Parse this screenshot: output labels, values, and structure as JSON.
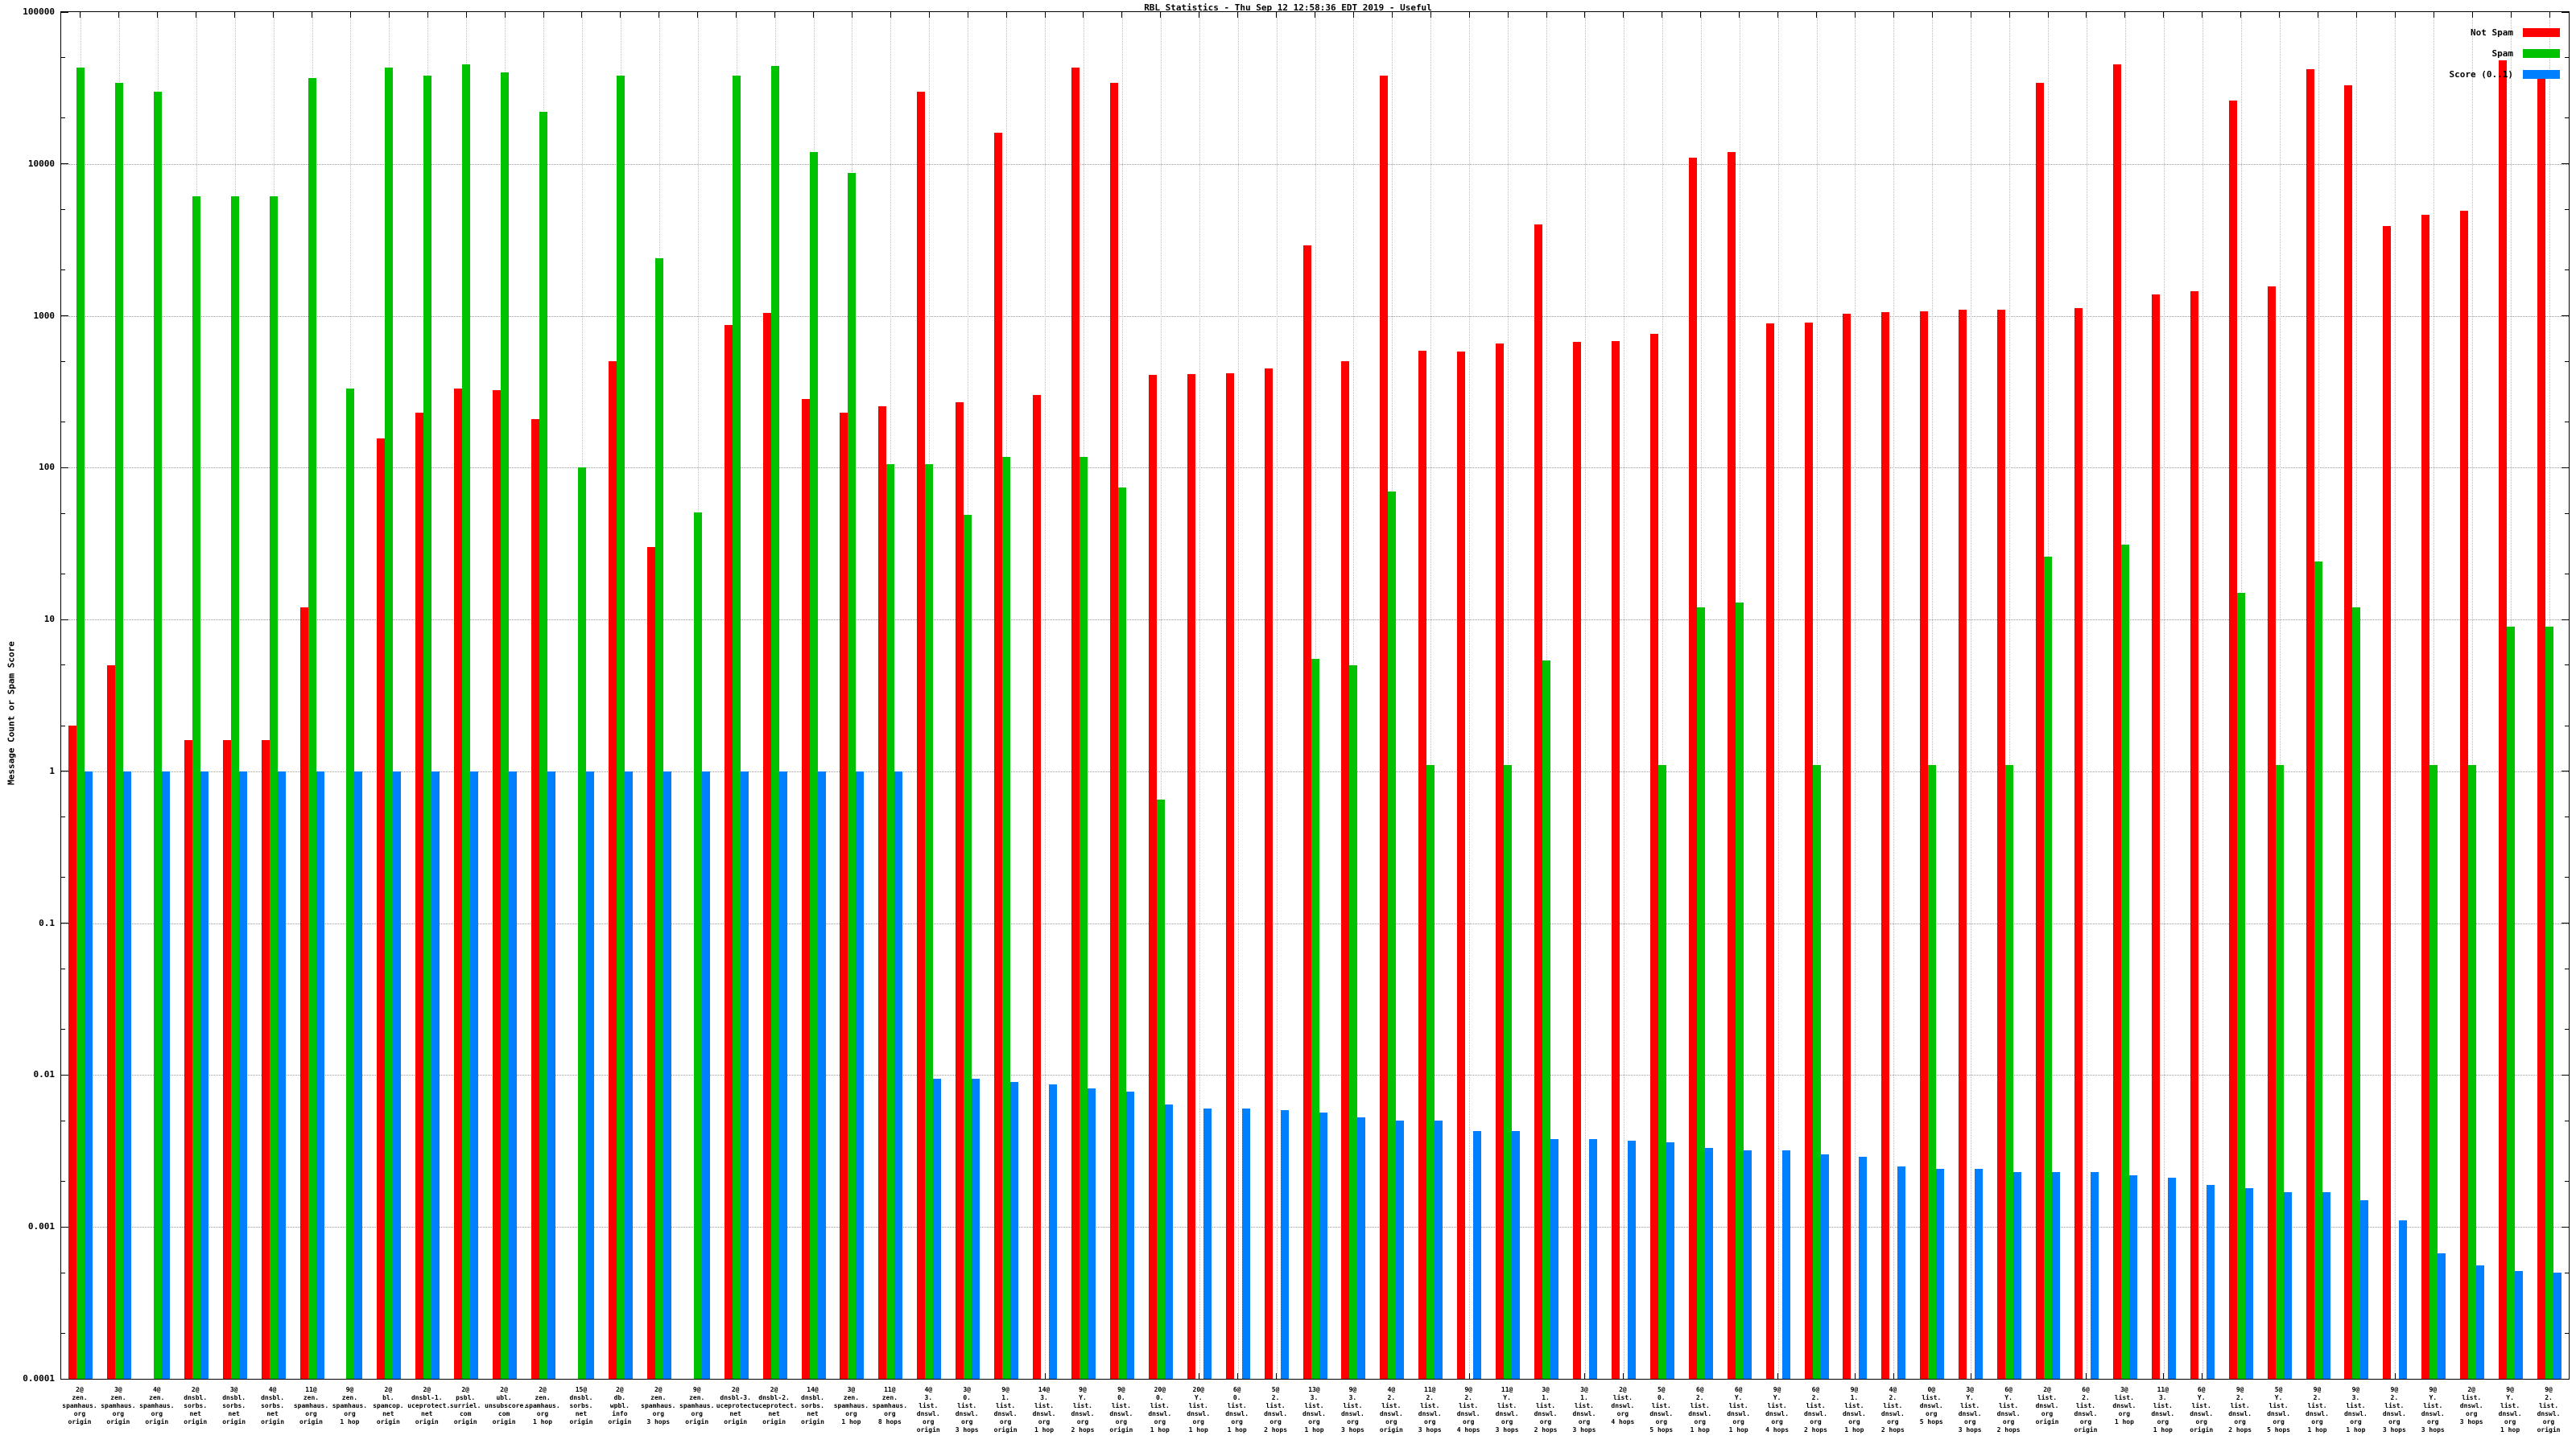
{
  "title": "RBL Statistics - Thu Sep 12 12:58:36 EDT 2019 - Useful",
  "axes": {
    "y_label": "Message Count or Spam Score",
    "y_ticks": [
      "100000",
      "10000",
      "1000",
      "100",
      "10",
      "1",
      "0.1",
      "0.01",
      "0.001",
      "0.0001"
    ],
    "y_max": 100000,
    "y_min": 0.0001,
    "log_decades": 9,
    "grid": "dotted"
  },
  "legend": {
    "position": "top-right",
    "items": [
      {
        "label": "Not Spam",
        "color": "#ff0000"
      },
      {
        "label": "Spam",
        "color": "#00c200"
      },
      {
        "label": "Score (0..1)",
        "color": "#0080ff"
      }
    ]
  },
  "chart_data": {
    "type": "bar",
    "scale": "log",
    "ylim": [
      0.0001,
      100000
    ],
    "categories": [
      [
        "2@",
        "zen.",
        "spamhaus.",
        "org",
        "origin"
      ],
      [
        "3@",
        "zen.",
        "spamhaus.",
        "org",
        "origin"
      ],
      [
        "4@",
        "zen.",
        "spamhaus.",
        "org",
        "origin"
      ],
      [
        "2@",
        "dnsbl.",
        "sorbs.",
        "net",
        "origin"
      ],
      [
        "3@",
        "dnsbl.",
        "sorbs.",
        "net",
        "origin"
      ],
      [
        "4@",
        "dnsbl.",
        "sorbs.",
        "net",
        "origin"
      ],
      [
        "11@",
        "zen.",
        "spamhaus.",
        "org",
        "origin"
      ],
      [
        "9@",
        "zen.",
        "spamhaus.",
        "org",
        "1 hop"
      ],
      [
        "2@",
        "bl.",
        "spamcop.",
        "net",
        "origin"
      ],
      [
        "2@",
        "dnsbl-1.",
        "uceprotect.",
        "net",
        "origin"
      ],
      [
        "2@",
        "psbl.",
        "surriel.",
        "com",
        "origin"
      ],
      [
        "2@",
        "ubl.",
        "unsubscore.",
        "com",
        "origin"
      ],
      [
        "2@",
        "zen.",
        "spamhaus.",
        "org",
        "1 hop"
      ],
      [
        "15@",
        "dnsbl.",
        "sorbs.",
        "net",
        "origin"
      ],
      [
        "2@",
        "db.",
        "wpbl.",
        "info",
        "origin"
      ],
      [
        "2@",
        "zen.",
        "spamhaus.",
        "org",
        "3 hops"
      ],
      [
        "9@",
        "zen.",
        "spamhaus.",
        "org",
        "origin"
      ],
      [
        "2@",
        "dnsbl-3.",
        "uceprotect.",
        "net",
        "origin"
      ],
      [
        "2@",
        "dnsbl-2.",
        "uceprotect.",
        "net",
        "origin"
      ],
      [
        "14@",
        "dnsbl.",
        "sorbs.",
        "net",
        "origin"
      ],
      [
        "3@",
        "zen.",
        "spamhaus.",
        "org",
        "1 hop"
      ],
      [
        "11@",
        "zen.",
        "spamhaus.",
        "org",
        "8 hops"
      ],
      [
        "4@",
        "3.",
        "list.",
        "dnswl.",
        "org",
        "origin"
      ],
      [
        "3@",
        "0.",
        "list.",
        "dnswl.",
        "org",
        "3 hops"
      ],
      [
        "9@",
        "1.",
        "list.",
        "dnswl.",
        "org",
        "origin"
      ],
      [
        "14@",
        "3.",
        "list.",
        "dnswl.",
        "org",
        "1 hop"
      ],
      [
        "9@",
        "Y.",
        "list.",
        "dnswl.",
        "org",
        "2 hops"
      ],
      [
        "9@",
        "0.",
        "list.",
        "dnswl.",
        "org",
        "origin"
      ],
      [
        "20@",
        "0.",
        "list.",
        "dnswl.",
        "org",
        "1 hop"
      ],
      [
        "20@",
        "Y.",
        "list.",
        "dnswl.",
        "org",
        "1 hop"
      ],
      [
        "6@",
        "0.",
        "list.",
        "dnswl.",
        "org",
        "1 hop"
      ],
      [
        "5@",
        "2.",
        "list.",
        "dnswl.",
        "org",
        "2 hops"
      ],
      [
        "13@",
        "3.",
        "list.",
        "dnswl.",
        "org",
        "1 hop"
      ],
      [
        "9@",
        "3.",
        "list.",
        "dnswl.",
        "org",
        "3 hops"
      ],
      [
        "4@",
        "2.",
        "list.",
        "dnswl.",
        "org",
        "origin"
      ],
      [
        "11@",
        "2.",
        "list.",
        "dnswl.",
        "org",
        "3 hops"
      ],
      [
        "9@",
        "2.",
        "list.",
        "dnswl.",
        "org",
        "4 hops"
      ],
      [
        "11@",
        "Y.",
        "list.",
        "dnswl.",
        "org",
        "3 hops"
      ],
      [
        "3@",
        "1.",
        "list.",
        "dnswl.",
        "org",
        "2 hops"
      ],
      [
        "3@",
        "1.",
        "list.",
        "dnswl.",
        "org",
        "3 hops"
      ],
      [
        "2@",
        "list.",
        "dnswl.",
        "org",
        "4 hops"
      ],
      [
        "5@",
        "0.",
        "list.",
        "dnswl.",
        "org",
        "5 hops"
      ],
      [
        "6@",
        "2.",
        "list.",
        "dnswl.",
        "org",
        "1 hop"
      ],
      [
        "6@",
        "Y.",
        "list.",
        "dnswl.",
        "org",
        "1 hop"
      ],
      [
        "9@",
        "Y.",
        "list.",
        "dnswl.",
        "org",
        "4 hops"
      ],
      [
        "6@",
        "2.",
        "list.",
        "dnswl.",
        "org",
        "2 hops"
      ],
      [
        "9@",
        "1.",
        "list.",
        "dnswl.",
        "org",
        "1 hop"
      ],
      [
        "4@",
        "2.",
        "list.",
        "dnswl.",
        "org",
        "2 hops"
      ],
      [
        "0@",
        "list.",
        "dnswl.",
        "org",
        "5 hops"
      ],
      [
        "3@",
        "Y.",
        "list.",
        "dnswl.",
        "org",
        "3 hops"
      ],
      [
        "6@",
        "Y.",
        "list.",
        "dnswl.",
        "org",
        "2 hops"
      ],
      [
        "2@",
        "list.",
        "dnswl.",
        "org",
        "origin"
      ],
      [
        "6@",
        "2.",
        "list.",
        "dnswl.",
        "org",
        "origin"
      ],
      [
        "3@",
        "list.",
        "dnswl.",
        "org",
        "1 hop"
      ],
      [
        "11@",
        "3.",
        "list.",
        "dnswl.",
        "org",
        "1 hop"
      ],
      [
        "6@",
        "Y.",
        "list.",
        "dnswl.",
        "org",
        "origin"
      ],
      [
        "9@",
        "2.",
        "list.",
        "dnswl.",
        "org",
        "2 hops"
      ],
      [
        "5@",
        "Y.",
        "list.",
        "dnswl.",
        "org",
        "5 hops"
      ],
      [
        "9@",
        "2.",
        "list.",
        "dnswl.",
        "org",
        "1 hop"
      ],
      [
        "9@",
        "3.",
        "list.",
        "dnswl.",
        "org",
        "1 hop"
      ],
      [
        "9@",
        "2.",
        "list.",
        "dnswl.",
        "org",
        "3 hops"
      ],
      [
        "9@",
        "Y.",
        "list.",
        "dnswl.",
        "org",
        "3 hops"
      ],
      [
        "2@",
        "list.",
        "dnswl.",
        "org",
        "3 hops"
      ],
      [
        "9@",
        "Y.",
        "list.",
        "dnswl.",
        "org",
        "1 hop"
      ],
      [
        "9@",
        "2.",
        "list.",
        "dnswl.",
        "org",
        "origin"
      ]
    ],
    "series": [
      {
        "name": "Not Spam",
        "color": "#ff0000",
        "values": [
          2,
          5,
          0,
          1.6,
          1.6,
          1.6,
          12,
          0,
          155,
          230,
          330,
          325,
          210,
          0,
          500,
          30,
          0,
          870,
          1050,
          283,
          230,
          255,
          30000,
          270,
          16000,
          300,
          43000,
          34000,
          410,
          415,
          420,
          450,
          2900,
          500,
          38000,
          590,
          585,
          660,
          4000,
          675,
          685,
          760,
          11000,
          12000,
          890,
          900,
          1030,
          1060,
          1070,
          1100,
          1100,
          34000,
          1120,
          45000,
          1380,
          1450,
          26000,
          1560,
          42000,
          33000,
          3900,
          4650,
          4900,
          48000,
          40000
        ]
      },
      {
        "name": "Spam",
        "color": "#00c200",
        "values": [
          43000,
          34000,
          30000,
          6100,
          6100,
          6100,
          37000,
          330,
          43000,
          38000,
          45000,
          40000,
          22000,
          100,
          38000,
          2400,
          51,
          38000,
          44000,
          12000,
          8700,
          105,
          105,
          49,
          118,
          0,
          118,
          74,
          0.65,
          0,
          0,
          0,
          5.5,
          5,
          70,
          1.1,
          0,
          1.1,
          5.4,
          0,
          0,
          1.1,
          12,
          13,
          0,
          1.1,
          0,
          0,
          1.1,
          0,
          1.1,
          26,
          0,
          31,
          0,
          0,
          15,
          1.1,
          24,
          12,
          0,
          1.1,
          1.1,
          9,
          9
        ]
      },
      {
        "name": "Score (0..1)",
        "color": "#0080ff",
        "values": [
          1,
          1,
          1,
          1,
          1,
          1,
          1,
          1,
          1,
          1,
          1,
          1,
          1,
          1,
          1,
          1,
          1,
          1,
          1,
          1,
          1,
          1,
          0.0095,
          0.0095,
          0.009,
          0.0087,
          0.0082,
          0.0078,
          0.0064,
          0.006,
          0.006,
          0.0059,
          0.0057,
          0.0053,
          0.005,
          0.005,
          0.0043,
          0.0043,
          0.0038,
          0.0038,
          0.0037,
          0.0036,
          0.0033,
          0.0032,
          0.0032,
          0.003,
          0.0029,
          0.0025,
          0.0024,
          0.0024,
          0.0023,
          0.0023,
          0.0023,
          0.0022,
          0.0021,
          0.0019,
          0.0018,
          0.0017,
          0.0017,
          0.0015,
          0.0011,
          0.00067,
          0.00056,
          0.00051,
          0.0005
        ]
      }
    ]
  }
}
